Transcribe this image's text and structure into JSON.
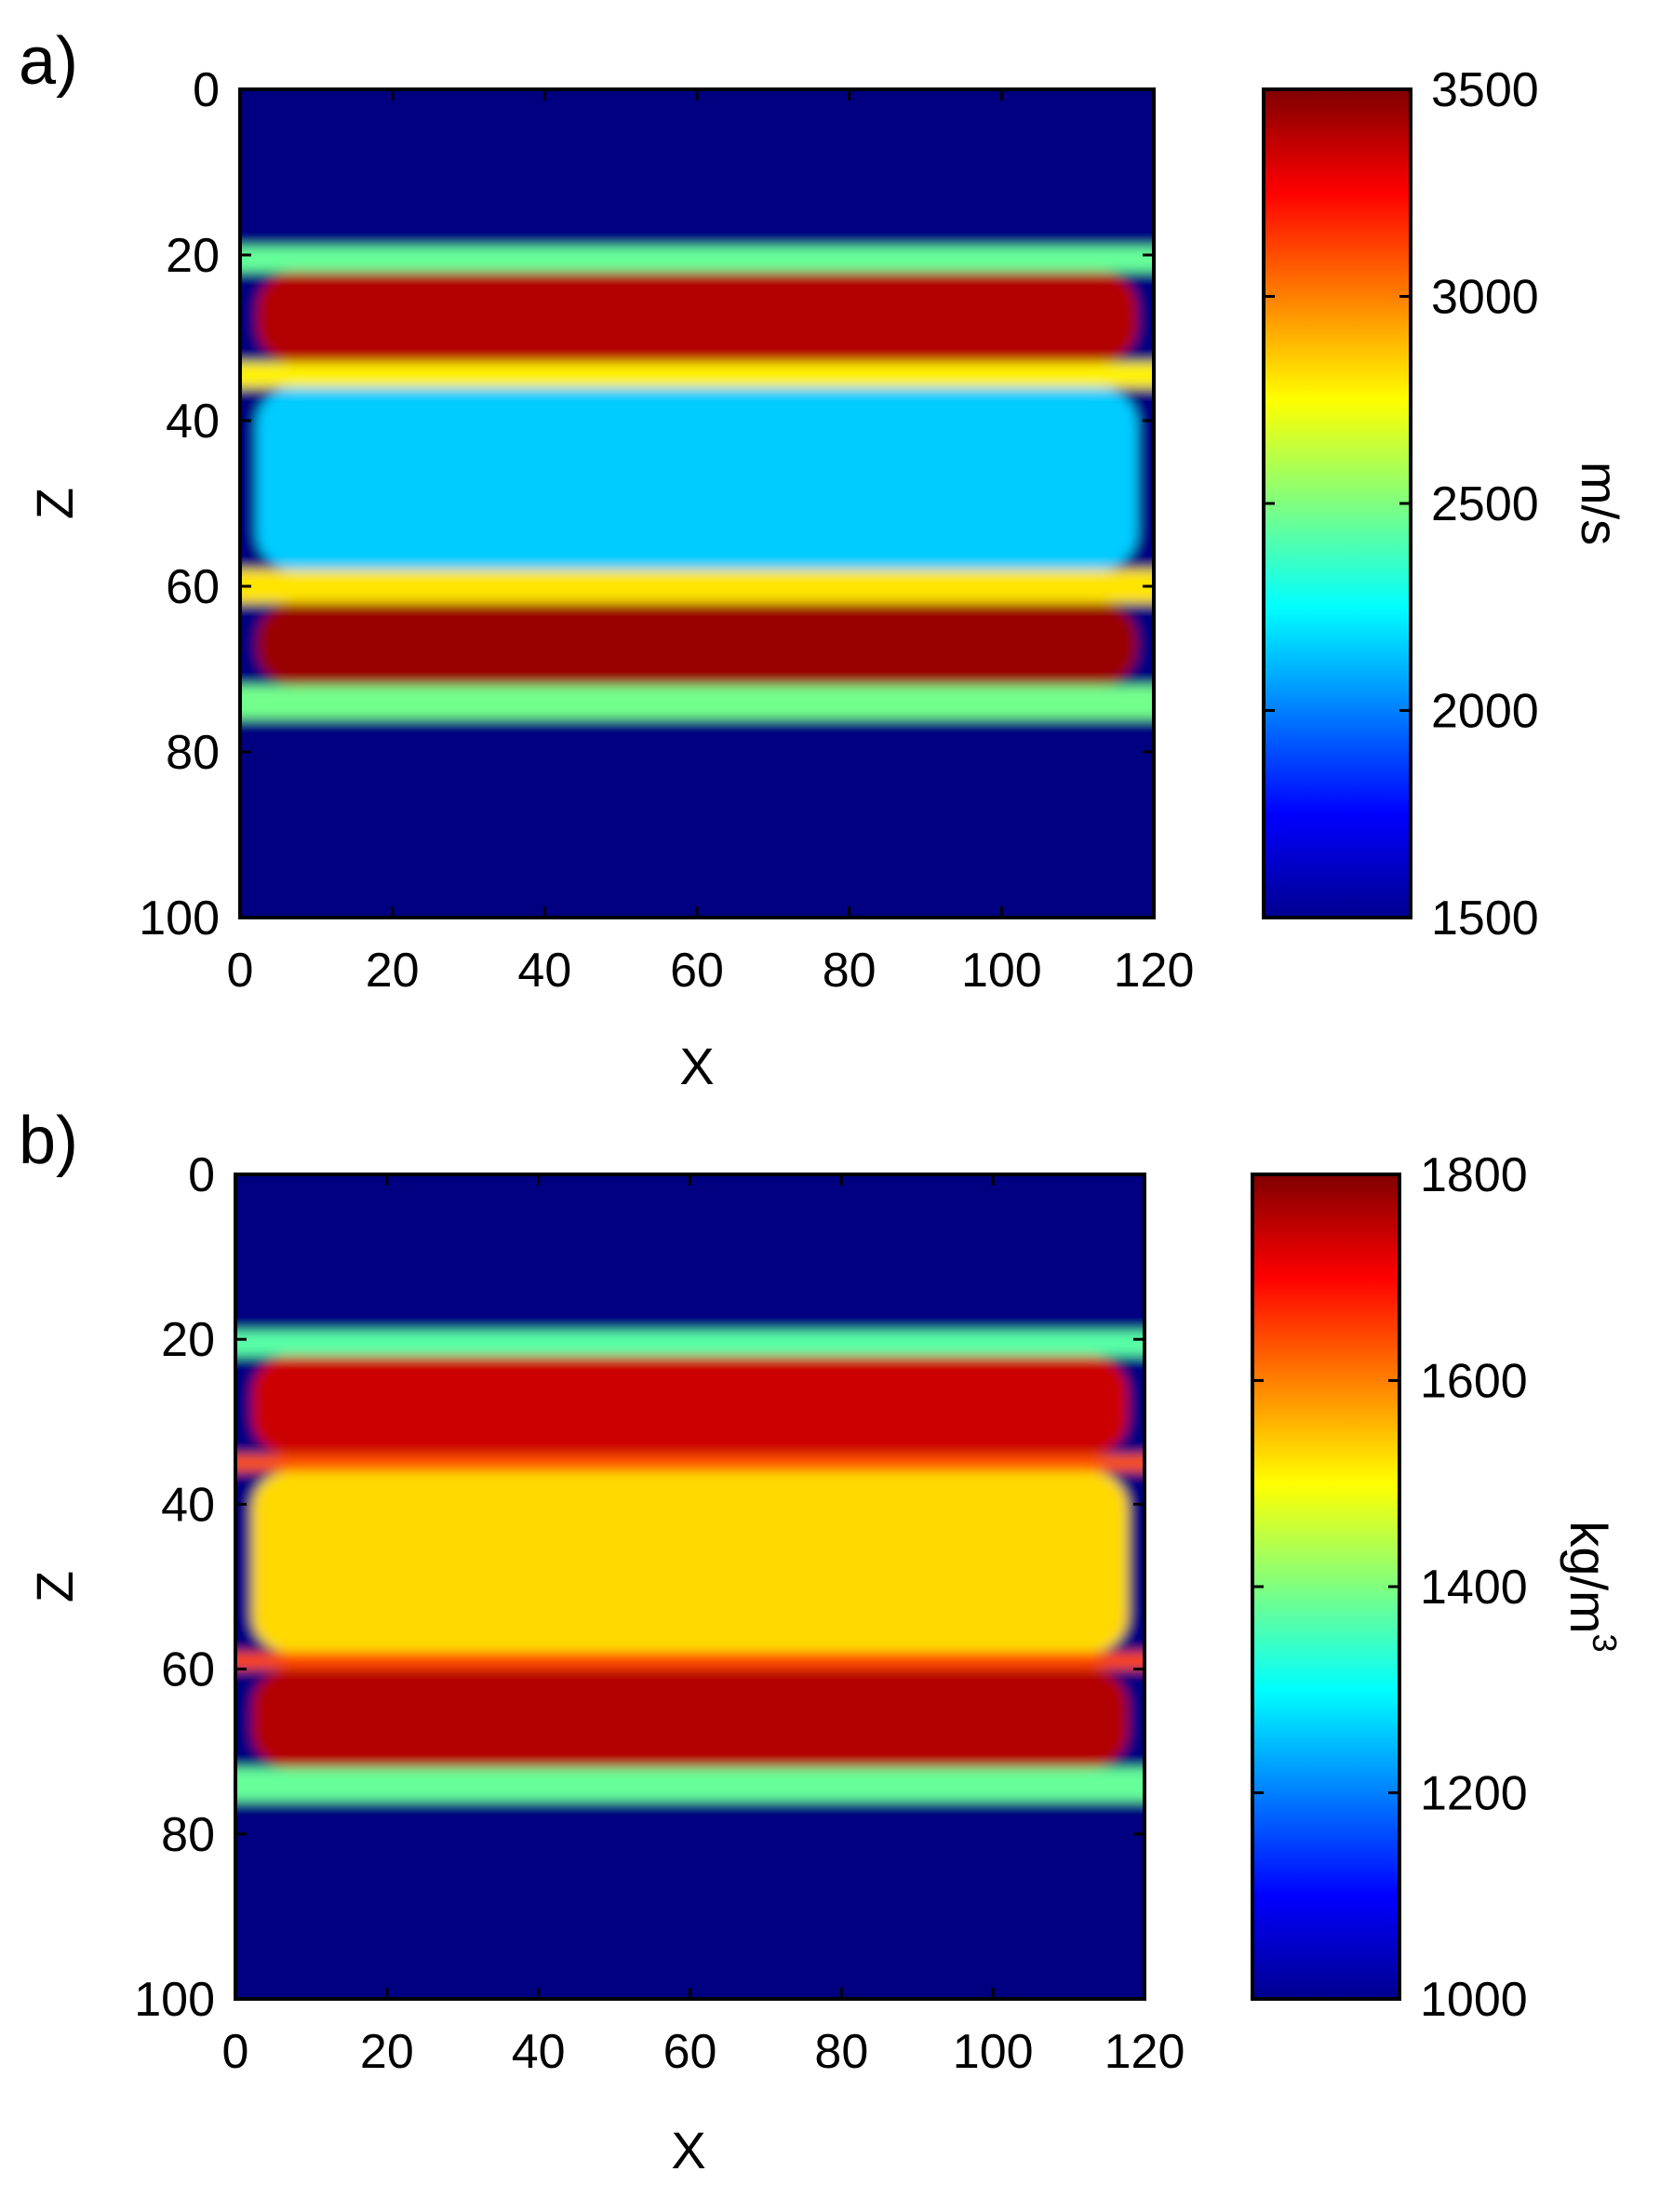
{
  "chart_data": [
    {
      "type": "heatmap",
      "panel_label": "a)",
      "xlabel": "X",
      "ylabel": "Z",
      "xlim": [
        0,
        120
      ],
      "ylim": [
        0,
        100
      ],
      "x_ticks": [
        "0",
        "20",
        "40",
        "60",
        "80",
        "100",
        "120"
      ],
      "y_ticks": [
        "0",
        "20",
        "40",
        "60",
        "80",
        "100"
      ],
      "y_axis_reversed": true,
      "colormap": "jet",
      "colorbar": {
        "label": "m/s",
        "range": [
          1500,
          3500
        ],
        "ticks": [
          "1500",
          "2000",
          "2500",
          "3000",
          "3500"
        ]
      },
      "layers": [
        {
          "z": [
            0,
            19
          ],
          "value": 1500,
          "description": "top layer"
        },
        {
          "z": [
            22,
            33
          ],
          "value": 3400,
          "description": "upper high-velocity layer"
        },
        {
          "z": [
            36,
            58
          ],
          "value": 2150,
          "description": "middle layer"
        },
        {
          "z": [
            62,
            72
          ],
          "value": 3450,
          "description": "lower high-velocity layer"
        },
        {
          "z": [
            76,
            100
          ],
          "value": 1500,
          "description": "bottom layer"
        }
      ]
    },
    {
      "type": "heatmap",
      "panel_label": "b)",
      "xlabel": "X",
      "ylabel": "Z",
      "xlim": [
        0,
        120
      ],
      "ylim": [
        0,
        100
      ],
      "x_ticks": [
        "0",
        "20",
        "40",
        "60",
        "80",
        "100",
        "120"
      ],
      "y_ticks": [
        "0",
        "20",
        "40",
        "60",
        "80",
        "100"
      ],
      "y_axis_reversed": true,
      "colormap": "jet",
      "colorbar": {
        "label": "kg/m",
        "label_superscript": "3",
        "range": [
          1000,
          1800
        ],
        "ticks": [
          "1000",
          "1200",
          "1400",
          "1600",
          "1800"
        ]
      },
      "layers": [
        {
          "z": [
            0,
            19
          ],
          "value": 1000,
          "description": "top layer"
        },
        {
          "z": [
            22,
            34
          ],
          "value": 1740,
          "description": "upper high-density layer"
        },
        {
          "z": [
            36,
            58
          ],
          "value": 1530,
          "description": "middle layer"
        },
        {
          "z": [
            60,
            72
          ],
          "value": 1760,
          "description": "lower high-density layer"
        },
        {
          "z": [
            76,
            100
          ],
          "value": 1000,
          "description": "bottom layer"
        }
      ]
    }
  ]
}
